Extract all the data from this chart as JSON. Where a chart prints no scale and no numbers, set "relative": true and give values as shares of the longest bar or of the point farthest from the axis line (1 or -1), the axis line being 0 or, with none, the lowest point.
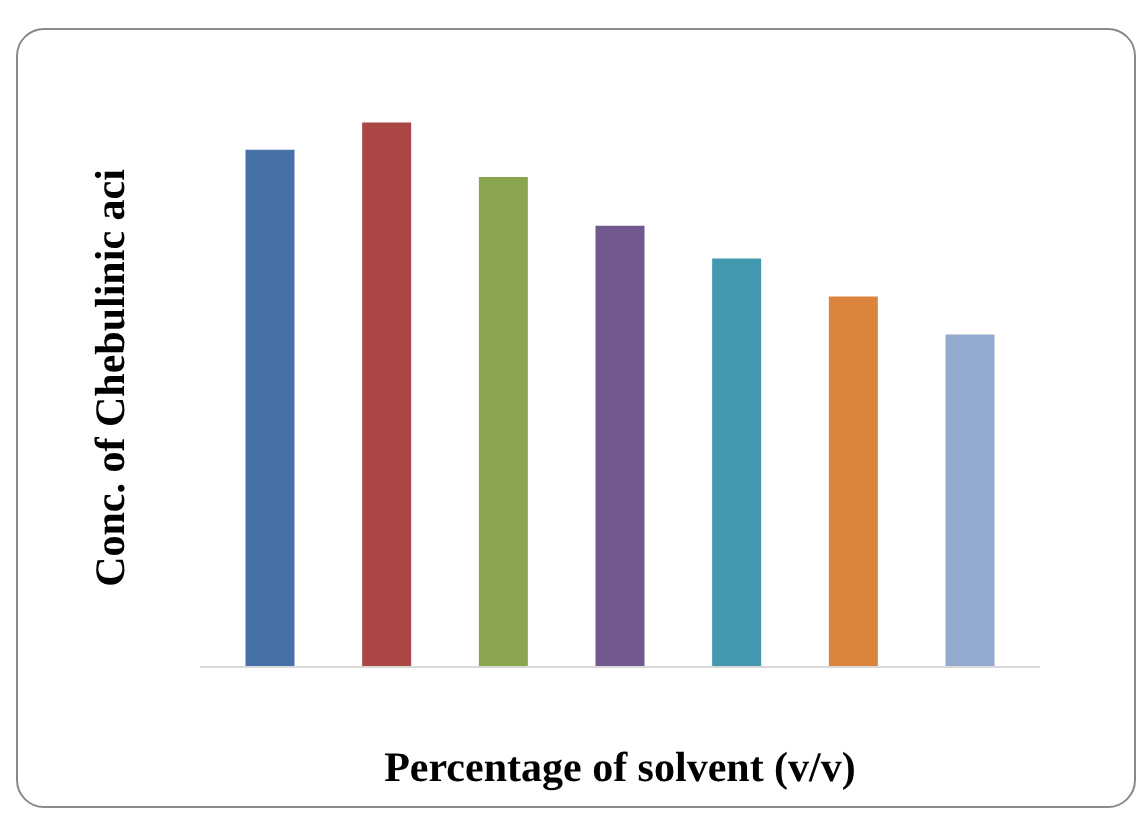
{
  "chart_data": {
    "type": "bar",
    "relative": true,
    "xlabel": "Percentage of solvent (v/v)",
    "ylabel": "Conc. of Chebulinic aci",
    "categories": [
      null,
      null,
      null,
      null,
      null,
      null,
      null
    ],
    "values": [
      0.95,
      1,
      0.9,
      0.81,
      0.75,
      0.68,
      0.61
    ],
    "colors": [
      "#4672a8",
      "#aa4644",
      "#89a54e",
      "#71588f",
      "#4198af",
      "#db843d",
      "#93a9cf"
    ]
  }
}
